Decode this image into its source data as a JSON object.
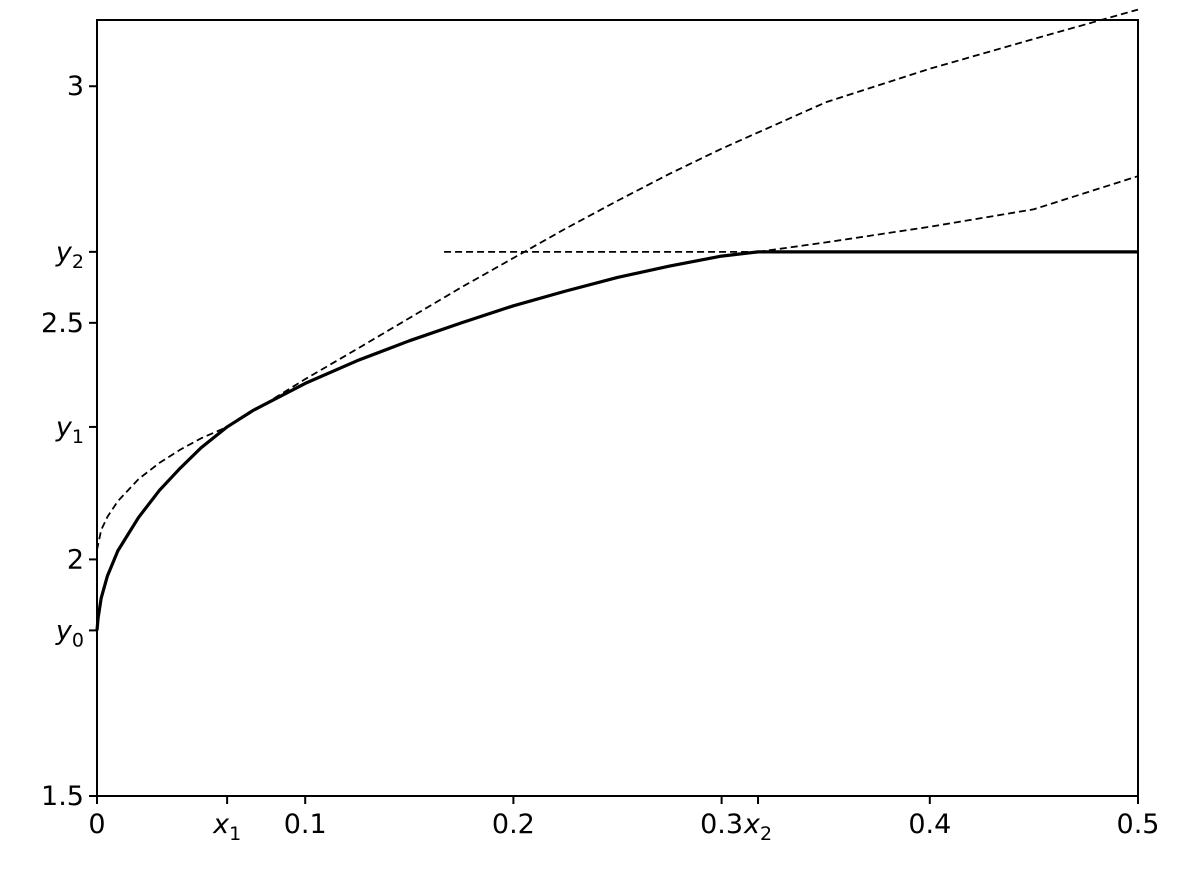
{
  "chart_data": {
    "type": "line",
    "title": "",
    "xlabel": "",
    "ylabel": "",
    "xlim": [
      0,
      0.5
    ],
    "ylim": [
      1.5,
      3.14
    ],
    "grid": false,
    "legend": "none",
    "x_ticks": [
      {
        "value": 0,
        "text": "0"
      },
      {
        "value": 0.0625,
        "sym": "x",
        "sub": "1"
      },
      {
        "value": 0.1,
        "text": "0.1"
      },
      {
        "value": 0.2,
        "text": "0.2"
      },
      {
        "value": 0.3,
        "text": "0.3"
      },
      {
        "value": 0.3175,
        "sym": "x",
        "sub": "2"
      },
      {
        "value": 0.4,
        "text": "0.4"
      },
      {
        "value": 0.5,
        "text": "0.5"
      }
    ],
    "y_ticks": [
      {
        "value": 1.5,
        "text": "1.5"
      },
      {
        "value": 1.85,
        "sym": "y",
        "sub": "0"
      },
      {
        "value": 2.0,
        "text": "2"
      },
      {
        "value": 2.28,
        "sym": "y",
        "sub": "1"
      },
      {
        "value": 2.5,
        "text": "2.5"
      },
      {
        "value": 2.65,
        "sym": "y",
        "sub": "2"
      },
      {
        "value": 3.0,
        "text": "3"
      }
    ],
    "series": [
      {
        "style": "solid",
        "color": "#000000",
        "points": [
          [
            0,
            1.85
          ],
          [
            0.0005,
            1.875
          ],
          [
            0.002,
            1.918
          ],
          [
            0.005,
            1.965
          ],
          [
            0.01,
            2.018
          ],
          [
            0.02,
            2.089
          ],
          [
            0.03,
            2.146
          ],
          [
            0.04,
            2.193
          ],
          [
            0.05,
            2.236
          ],
          [
            0.0625,
            2.28
          ],
          [
            0.075,
            2.315
          ],
          [
            0.1,
            2.372
          ],
          [
            0.125,
            2.42
          ],
          [
            0.15,
            2.462
          ],
          [
            0.175,
            2.5
          ],
          [
            0.2,
            2.536
          ],
          [
            0.225,
            2.567
          ],
          [
            0.25,
            2.596
          ],
          [
            0.275,
            2.62
          ],
          [
            0.3,
            2.641
          ],
          [
            0.3175,
            2.65
          ],
          [
            0.5,
            2.65
          ]
        ]
      },
      {
        "style": "dashed",
        "color": "#000000",
        "points": [
          [
            0,
            2.02
          ],
          [
            0.002,
            2.062
          ],
          [
            0.005,
            2.09
          ],
          [
            0.01,
            2.123
          ],
          [
            0.02,
            2.17
          ],
          [
            0.03,
            2.204
          ],
          [
            0.04,
            2.232
          ],
          [
            0.05,
            2.256
          ],
          [
            0.0625,
            2.28
          ],
          [
            0.075,
            2.313
          ],
          [
            0.1,
            2.381
          ],
          [
            0.125,
            2.445
          ],
          [
            0.15,
            2.51
          ],
          [
            0.175,
            2.575
          ],
          [
            0.2,
            2.637
          ],
          [
            0.225,
            2.699
          ],
          [
            0.25,
            2.758
          ],
          [
            0.275,
            2.815
          ],
          [
            0.3,
            2.868
          ],
          [
            0.35,
            2.966
          ],
          [
            0.4,
            3.037
          ],
          [
            0.45,
            3.1
          ],
          [
            0.5,
            3.162
          ]
        ]
      },
      {
        "style": "dashed",
        "color": "#000000",
        "points": [
          [
            0.3175,
            2.65
          ],
          [
            0.35,
            2.67
          ],
          [
            0.4,
            2.703
          ],
          [
            0.45,
            2.74
          ],
          [
            0.5,
            2.81
          ]
        ]
      },
      {
        "style": "dashed",
        "color": "#000000",
        "points": [
          [
            0.1667,
            2.65
          ],
          [
            0.3175,
            2.65
          ]
        ]
      }
    ]
  }
}
